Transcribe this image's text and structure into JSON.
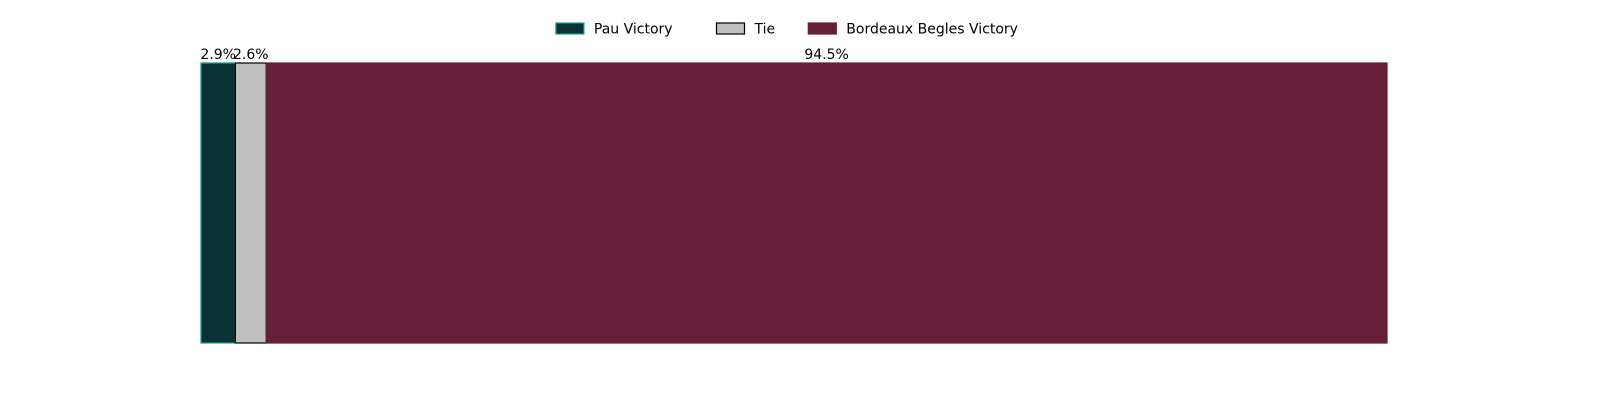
{
  "chart_data": {
    "type": "bar",
    "orientation": "horizontal",
    "stacked": true,
    "normalized_percent": true,
    "categories": [
      ""
    ],
    "series": [
      {
        "name": "Pau Victory",
        "values": [
          2.9
        ],
        "label": "2.9%",
        "color": "#083233",
        "edge_color": "#1a9e96"
      },
      {
        "name": "Tie",
        "values": [
          2.6
        ],
        "label": "2.6%",
        "color": "#c0c0c0",
        "edge_color": "#000000"
      },
      {
        "name": "Bordeaux Begles Victory",
        "values": [
          94.5
        ],
        "label": "94.5%",
        "color": "#651f38",
        "edge_color": "#651f38"
      }
    ],
    "xlim": [
      0,
      100
    ],
    "grid": false,
    "axes_visible": false,
    "title": "",
    "xlabel": "",
    "ylabel": "",
    "legend_position": "top-center"
  }
}
